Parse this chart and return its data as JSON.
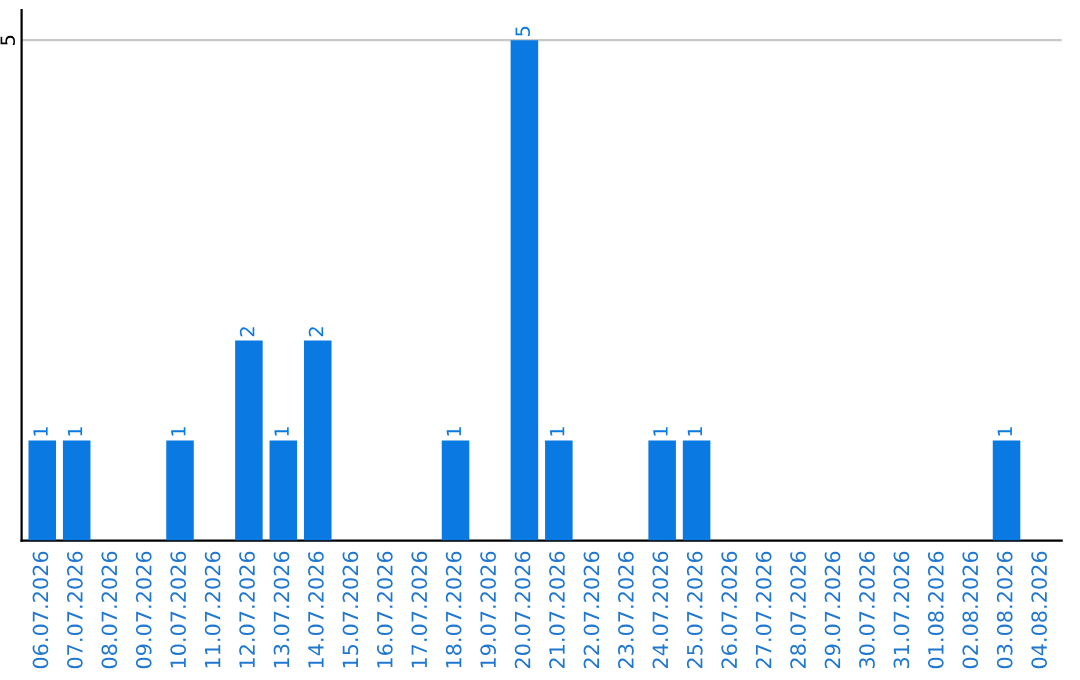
{
  "chart_data": {
    "type": "bar",
    "categories": [
      "06.07.2026",
      "07.07.2026",
      "08.07.2026",
      "09.07.2026",
      "10.07.2026",
      "11.07.2026",
      "12.07.2026",
      "13.07.2026",
      "14.07.2026",
      "15.07.2026",
      "16.07.2026",
      "17.07.2026",
      "18.07.2026",
      "19.07.2026",
      "20.07.2026",
      "21.07.2026",
      "22.07.2026",
      "23.07.2026",
      "24.07.2026",
      "25.07.2026",
      "26.07.2026",
      "27.07.2026",
      "28.07.2026",
      "29.07.2026",
      "30.07.2026",
      "31.07.2026",
      "01.08.2026",
      "02.08.2026",
      "03.08.2026",
      "04.08.2026"
    ],
    "values": [
      1,
      1,
      0,
      0,
      1,
      0,
      2,
      1,
      2,
      0,
      0,
      0,
      1,
      0,
      5,
      1,
      0,
      0,
      1,
      1,
      0,
      0,
      0,
      0,
      0,
      0,
      0,
      0,
      1,
      0
    ],
    "value_labels": [
      "1",
      "1",
      null,
      null,
      "1",
      null,
      "2",
      "1",
      "2",
      null,
      null,
      null,
      "1",
      null,
      "5",
      "1",
      null,
      null,
      "1",
      "1",
      null,
      null,
      null,
      null,
      null,
      null,
      null,
      null,
      "1",
      null
    ],
    "color": "#0a7ae2",
    "ylim": [
      0,
      5.3
    ],
    "yticks": [
      5
    ],
    "grid": "y"
  }
}
